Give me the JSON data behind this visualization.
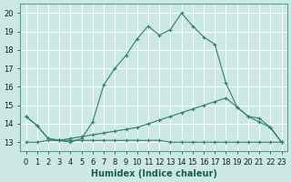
{
  "xlabel": "Humidex (Indice chaleur)",
  "background_color": "#cce8e4",
  "grid_color": "#b0d8d2",
  "line_color": "#2e7d6e",
  "xlim": [
    -0.5,
    23.5
  ],
  "ylim": [
    12.5,
    20.5
  ],
  "line1_x": [
    0,
    1,
    2,
    3,
    4,
    5,
    6,
    7,
    8,
    9,
    10,
    11,
    12,
    13,
    14,
    15,
    16,
    17,
    18,
    19,
    20,
    21,
    22,
    23
  ],
  "line1_y": [
    14.4,
    13.9,
    13.2,
    13.1,
    13.0,
    13.2,
    14.1,
    16.1,
    17.0,
    17.7,
    18.6,
    19.3,
    18.8,
    19.1,
    20.0,
    19.3,
    18.7,
    18.3,
    16.2,
    14.9,
    14.4,
    14.1,
    13.8,
    13.0
  ],
  "line2_x": [
    0,
    1,
    2,
    3,
    4,
    5,
    6,
    7,
    8,
    9,
    10,
    11,
    12,
    13,
    14,
    15,
    16,
    17,
    18,
    19,
    20,
    21,
    22,
    23
  ],
  "line2_y": [
    13.0,
    13.0,
    13.1,
    13.1,
    13.1,
    13.1,
    13.1,
    13.1,
    13.1,
    13.1,
    13.1,
    13.1,
    13.1,
    13.0,
    13.0,
    13.0,
    13.0,
    13.0,
    13.0,
    13.0,
    13.0,
    13.0,
    13.0,
    13.0
  ],
  "line3_x": [
    0,
    1,
    2,
    3,
    4,
    5,
    6,
    7,
    8,
    9,
    10,
    11,
    12,
    13,
    14,
    15,
    16,
    17,
    18,
    19,
    20,
    21,
    22,
    23
  ],
  "line3_y": [
    14.4,
    13.9,
    13.2,
    13.1,
    13.2,
    13.3,
    13.4,
    13.5,
    13.6,
    13.7,
    13.8,
    14.0,
    14.2,
    14.4,
    14.6,
    14.8,
    15.0,
    15.2,
    15.4,
    14.9,
    14.4,
    14.3,
    13.8,
    13.0
  ]
}
